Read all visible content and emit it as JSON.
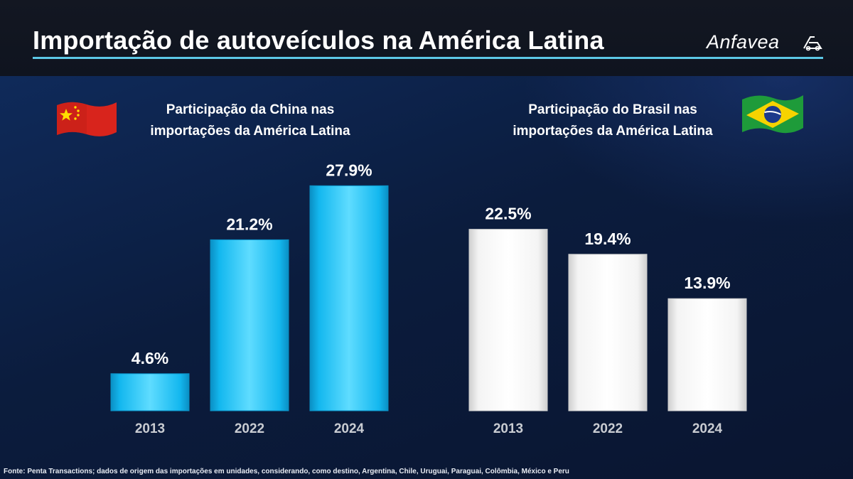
{
  "header": {
    "title": "Importação de autoveículos na América Latina",
    "logo_text": "Anfavea"
  },
  "colors": {
    "accent_line": "#5cc8e6",
    "china_bar": "#19c3f5",
    "brasil_bar": "#ffffff",
    "tick_label": "#c9ccd2"
  },
  "icons": {
    "china": "china-flag-icon",
    "brasil": "brazil-flag-icon",
    "logo": "anfavea-logo-icon"
  },
  "chart_data": [
    {
      "type": "bar",
      "title_line1": "Participação da China nas",
      "title_line2": "importações da América Latina",
      "categories": [
        "2013",
        "2022",
        "2024"
      ],
      "values": [
        4.6,
        21.2,
        27.9
      ],
      "labels": [
        "4.6%",
        "21.2%",
        "27.9%"
      ],
      "unit": "%",
      "ylim": [
        0,
        30
      ],
      "grid": false,
      "color": "#19c3f5"
    },
    {
      "type": "bar",
      "title_line1": "Participação do Brasil nas",
      "title_line2": "importações da América Latina",
      "categories": [
        "2013",
        "2022",
        "2024"
      ],
      "values": [
        22.5,
        19.4,
        13.9
      ],
      "labels": [
        "22.5%",
        "19.4%",
        "13.9%"
      ],
      "unit": "%",
      "ylim": [
        0,
        30
      ],
      "grid": false,
      "color": "#ffffff"
    }
  ],
  "footer": {
    "source": "Fonte: Penta Transactions; dados de origem das importações em unidades, considerando, como destino, Argentina, Chile, Uruguai, Paraguai, Colômbia, México e Peru"
  }
}
